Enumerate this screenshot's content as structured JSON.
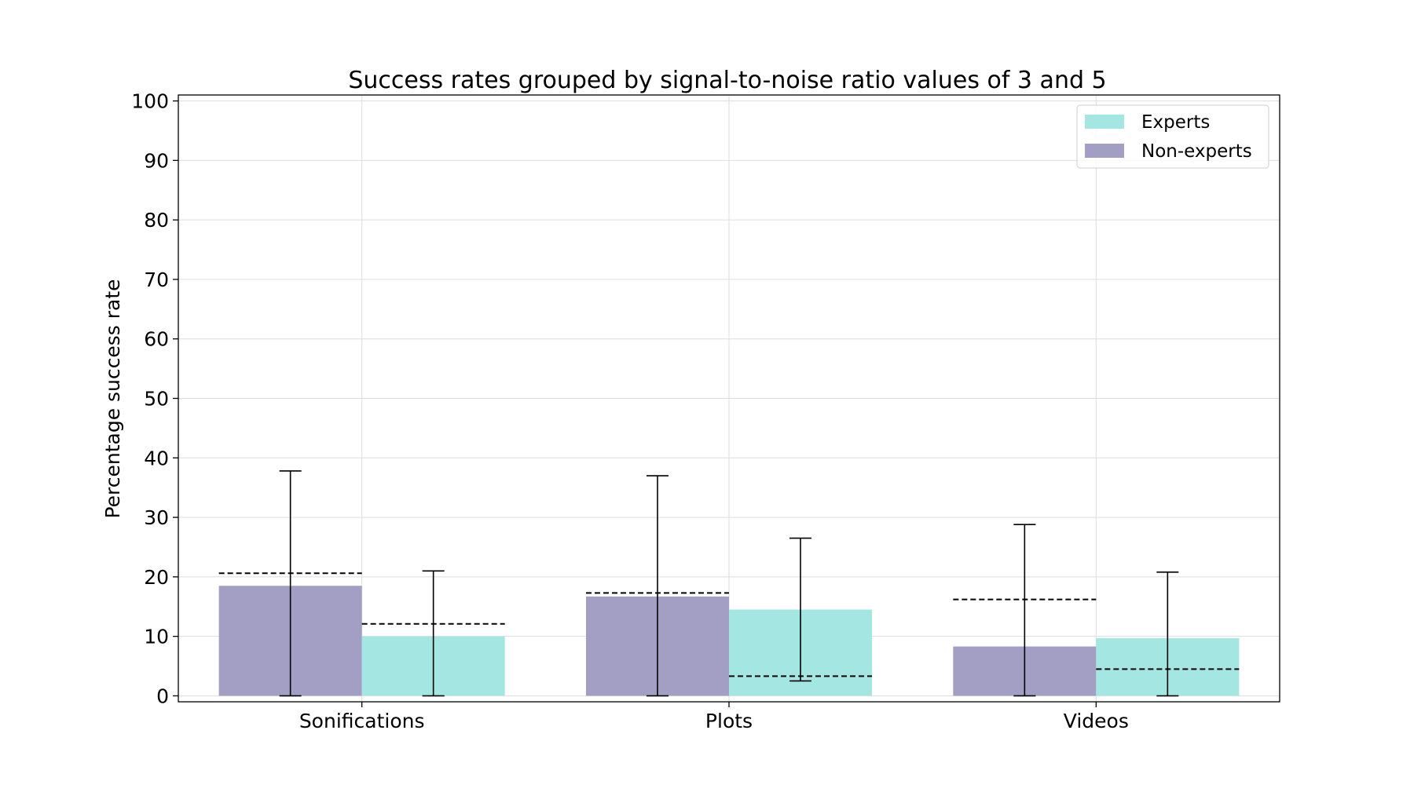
{
  "chart_data": {
    "type": "bar",
    "title": "Success rates grouped by signal-to-noise ratio values of 3 and 5",
    "xlabel": "",
    "ylabel": "Percentage success rate",
    "ylim": [
      -1,
      101
    ],
    "yticks": [
      0,
      10,
      20,
      30,
      40,
      50,
      60,
      70,
      80,
      90,
      100
    ],
    "categories": [
      "Sonifications",
      "Plots",
      "Videos"
    ],
    "grid": true,
    "legend_position": "top-right",
    "series": [
      {
        "name": "Non-experts",
        "color": "#a39ec4",
        "values": [
          18.5,
          16.7,
          8.3
        ],
        "error_low": [
          0,
          0,
          0
        ],
        "error_high": [
          37.8,
          37.0,
          28.8
        ],
        "dashed_reference": [
          20.6,
          17.3,
          16.2
        ]
      },
      {
        "name": "Experts",
        "color": "#a4e6e2",
        "values": [
          10.0,
          14.5,
          9.7
        ],
        "error_low": [
          0,
          2.5,
          0
        ],
        "error_high": [
          21.0,
          26.5,
          20.8
        ],
        "dashed_reference": [
          12.1,
          3.3,
          4.5
        ]
      }
    ],
    "legend_order": [
      "Experts",
      "Non-experts"
    ]
  }
}
